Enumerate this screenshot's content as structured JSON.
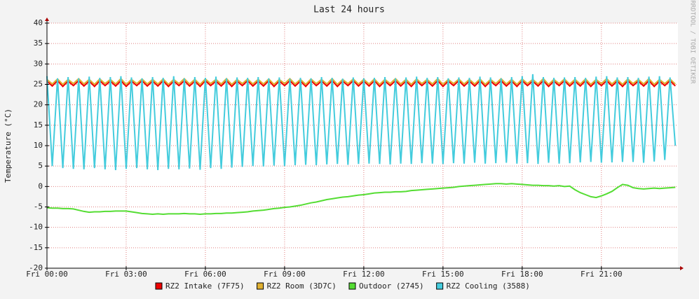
{
  "chart_data": {
    "type": "line",
    "title": "Last 24 hours",
    "ylabel": "Temperature (°C)",
    "watermark": "RRDTOOL / TOBI OETIKER",
    "x": [
      0,
      0.2,
      0.4,
      0.6,
      0.8,
      1,
      1.2,
      1.4,
      1.6,
      1.8,
      2,
      2.2,
      2.4,
      2.6,
      2.8,
      3,
      3.2,
      3.4,
      3.6,
      3.8,
      4,
      4.2,
      4.4,
      4.6,
      4.8,
      5,
      5.2,
      5.4,
      5.6,
      5.8,
      6,
      6.2,
      6.4,
      6.6,
      6.8,
      7,
      7.2,
      7.4,
      7.6,
      7.8,
      8,
      8.2,
      8.4,
      8.6,
      8.8,
      9,
      9.2,
      9.4,
      9.6,
      9.8,
      10,
      10.2,
      10.4,
      10.6,
      10.8,
      11,
      11.2,
      11.4,
      11.6,
      11.8,
      12,
      12.2,
      12.4,
      12.6,
      12.8,
      13,
      13.2,
      13.4,
      13.6,
      13.8,
      14,
      14.2,
      14.4,
      14.6,
      14.8,
      15,
      15.2,
      15.4,
      15.6,
      15.8,
      16,
      16.2,
      16.4,
      16.6,
      16.8,
      17,
      17.2,
      17.4,
      17.6,
      17.8,
      18,
      18.2,
      18.4,
      18.6,
      18.8,
      19,
      19.2,
      19.4,
      19.6,
      19.8,
      20,
      20.2,
      20.4,
      20.6,
      20.8,
      21,
      21.2,
      21.4,
      21.6,
      21.8,
      22,
      22.2,
      22.4,
      22.6,
      22.8,
      23,
      23.2,
      23.4,
      23.6,
      23.8
    ],
    "series": [
      {
        "name": "RZ2 Intake (7F75)",
        "color": "#ee0000",
        "values": [
          25.8,
          24.6,
          25.9,
          24.5,
          25.8,
          24.7,
          25.9,
          24.6,
          25.8,
          24.5,
          25.9,
          24.7,
          25.8,
          24.6,
          25.9,
          24.5,
          25.8,
          24.7,
          25.9,
          24.6,
          25.8,
          24.6,
          25.9,
          24.5,
          25.8,
          24.7,
          25.9,
          24.6,
          25.8,
          24.5,
          25.9,
          24.7,
          25.8,
          24.6,
          25.9,
          24.5,
          25.8,
          24.7,
          25.9,
          24.6,
          25.8,
          24.6,
          25.9,
          24.5,
          25.8,
          24.7,
          25.9,
          24.6,
          25.8,
          24.5,
          25.9,
          24.7,
          25.8,
          24.6,
          25.9,
          24.5,
          25.8,
          24.7,
          25.9,
          24.6,
          25.8,
          24.6,
          25.9,
          24.5,
          25.8,
          24.7,
          25.9,
          24.6,
          25.8,
          24.5,
          25.9,
          24.7,
          25.8,
          24.6,
          25.9,
          24.5,
          25.8,
          24.7,
          25.9,
          24.6,
          25.8,
          24.6,
          25.9,
          24.5,
          25.8,
          24.7,
          25.9,
          24.6,
          25.8,
          24.5,
          25.9,
          24.7,
          25.8,
          24.6,
          25.9,
          24.5,
          25.8,
          24.7,
          25.9,
          24.6,
          25.8,
          24.6,
          25.9,
          24.5,
          25.8,
          24.7,
          25.9,
          24.6,
          25.8,
          24.5,
          25.9,
          24.7,
          25.8,
          24.6,
          25.9,
          24.5,
          25.8,
          24.7,
          25.9,
          24.6
        ]
      },
      {
        "name": "RZ2 Room (3D7C)",
        "color": "#e0b030",
        "values": [
          26.2,
          25.1,
          26.3,
          25.0,
          26.2,
          25.2,
          26.4,
          25.1,
          26.2,
          25.0,
          26.3,
          25.2,
          26.2,
          25.1,
          26.4,
          25.0,
          26.2,
          25.2,
          26.3,
          25.1,
          26.2,
          25.1,
          26.3,
          25.0,
          26.2,
          25.2,
          26.4,
          25.1,
          26.2,
          25.0,
          26.3,
          25.2,
          26.2,
          25.1,
          26.4,
          25.0,
          26.2,
          25.2,
          26.3,
          25.1,
          26.2,
          25.1,
          26.3,
          25.0,
          26.2,
          25.2,
          26.4,
          25.1,
          26.2,
          25.0,
          26.3,
          25.2,
          26.2,
          25.1,
          26.4,
          25.0,
          26.2,
          25.2,
          26.3,
          25.1,
          26.2,
          25.1,
          26.3,
          25.0,
          26.2,
          25.2,
          26.4,
          25.1,
          26.2,
          25.0,
          26.3,
          25.2,
          26.2,
          25.1,
          26.4,
          25.0,
          26.2,
          25.2,
          26.3,
          25.1,
          26.2,
          25.1,
          26.3,
          25.0,
          26.2,
          25.2,
          26.4,
          25.1,
          26.2,
          25.0,
          26.3,
          25.2,
          26.2,
          25.1,
          26.4,
          25.0,
          26.2,
          25.2,
          26.3,
          25.1,
          26.2,
          25.1,
          26.3,
          25.0,
          26.2,
          25.2,
          26.4,
          25.1,
          26.2,
          25.0,
          26.3,
          25.2,
          26.2,
          25.1,
          26.4,
          25.0,
          26.2,
          25.2,
          26.3,
          25.1
        ]
      },
      {
        "name": "Outdoor (2745)",
        "color": "#55dd33",
        "values": [
          -5.2,
          -5.3,
          -5.3,
          -5.4,
          -5.4,
          -5.5,
          -5.8,
          -6.1,
          -6.3,
          -6.2,
          -6.2,
          -6.1,
          -6.1,
          -6.0,
          -6.0,
          -6.0,
          -6.2,
          -6.4,
          -6.6,
          -6.7,
          -6.8,
          -6.7,
          -6.8,
          -6.7,
          -6.7,
          -6.7,
          -6.6,
          -6.7,
          -6.7,
          -6.8,
          -6.7,
          -6.7,
          -6.6,
          -6.6,
          -6.5,
          -6.5,
          -6.4,
          -6.3,
          -6.2,
          -6.0,
          -5.9,
          -5.8,
          -5.6,
          -5.4,
          -5.3,
          -5.1,
          -5.0,
          -4.8,
          -4.6,
          -4.3,
          -4.0,
          -3.8,
          -3.5,
          -3.2,
          -3.0,
          -2.8,
          -2.6,
          -2.5,
          -2.3,
          -2.1,
          -2.0,
          -1.8,
          -1.6,
          -1.5,
          -1.4,
          -1.4,
          -1.3,
          -1.3,
          -1.2,
          -1.0,
          -0.9,
          -0.8,
          -0.7,
          -0.6,
          -0.5,
          -0.4,
          -0.3,
          -0.2,
          0.0,
          0.1,
          0.2,
          0.3,
          0.4,
          0.5,
          0.6,
          0.7,
          0.7,
          0.6,
          0.7,
          0.6,
          0.5,
          0.4,
          0.3,
          0.3,
          0.2,
          0.2,
          0.1,
          0.2,
          0.0,
          0.1,
          -0.8,
          -1.5,
          -2.0,
          -2.5,
          -2.7,
          -2.3,
          -1.8,
          -1.2,
          -0.3,
          0.5,
          0.3,
          -0.3,
          -0.5,
          -0.6,
          -0.5,
          -0.4,
          -0.5,
          -0.4,
          -0.3,
          -0.2
        ]
      },
      {
        "name": "RZ2 Cooling (3588)",
        "color": "#44ccdd",
        "values": [
          27,
          5,
          26.5,
          4.5,
          26.8,
          4.3,
          26.5,
          4.2,
          26.9,
          4.5,
          26.6,
          4.2,
          26.8,
          4.0,
          27.0,
          4.3,
          26.7,
          4.5,
          26.5,
          4.2,
          26.8,
          4.0,
          26.6,
          4.3,
          27.0,
          4.2,
          26.5,
          4.4,
          26.8,
          4.1,
          26.6,
          4.5,
          26.9,
          4.3,
          26.5,
          4.6,
          26.7,
          4.8,
          26.6,
          5.0,
          26.8,
          4.9,
          26.5,
          5.1,
          26.7,
          5.0,
          26.4,
          5.2,
          26.6,
          5.3,
          26.5,
          5.2,
          26.8,
          5.4,
          26.6,
          5.5,
          26.4,
          5.3,
          26.7,
          5.5,
          26.5,
          5.6,
          26.6,
          5.5,
          26.8,
          5.4,
          26.5,
          5.6,
          26.7,
          5.5,
          26.9,
          5.7,
          26.6,
          5.6,
          26.8,
          5.5,
          26.5,
          5.7,
          26.7,
          5.6,
          26.6,
          5.8,
          26.9,
          5.6,
          26.7,
          5.7,
          26.5,
          5.8,
          26.8,
          5.6,
          27.0,
          5.7,
          27.5,
          5.5,
          26.8,
          5.8,
          26.6,
          5.6,
          26.7,
          5.7,
          26.8,
          5.9,
          26.6,
          6.0,
          26.9,
          5.8,
          27.0,
          5.9,
          26.7,
          6.0,
          26.8,
          6.0,
          26.6,
          5.8,
          26.9,
          6.1,
          27.0,
          6.5,
          26.7,
          10
        ]
      }
    ],
    "xlim": [
      0,
      23.9
    ],
    "xticks": [
      {
        "value": 0,
        "label": "Fri 00:00"
      },
      {
        "value": 3,
        "label": "Fri 03:00"
      },
      {
        "value": 6,
        "label": "Fri 06:00"
      },
      {
        "value": 9,
        "label": "Fri 09:00"
      },
      {
        "value": 12,
        "label": "Fri 12:00"
      },
      {
        "value": 15,
        "label": "Fri 15:00"
      },
      {
        "value": 18,
        "label": "Fri 18:00"
      },
      {
        "value": 21,
        "label": "Fri 21:00"
      }
    ],
    "ylim": [
      -20,
      40
    ],
    "yticks": [
      -20,
      -15,
      -10,
      -5,
      0,
      5,
      10,
      15,
      20,
      25,
      30,
      35,
      40
    ],
    "grid": true,
    "legend": "bottom"
  }
}
